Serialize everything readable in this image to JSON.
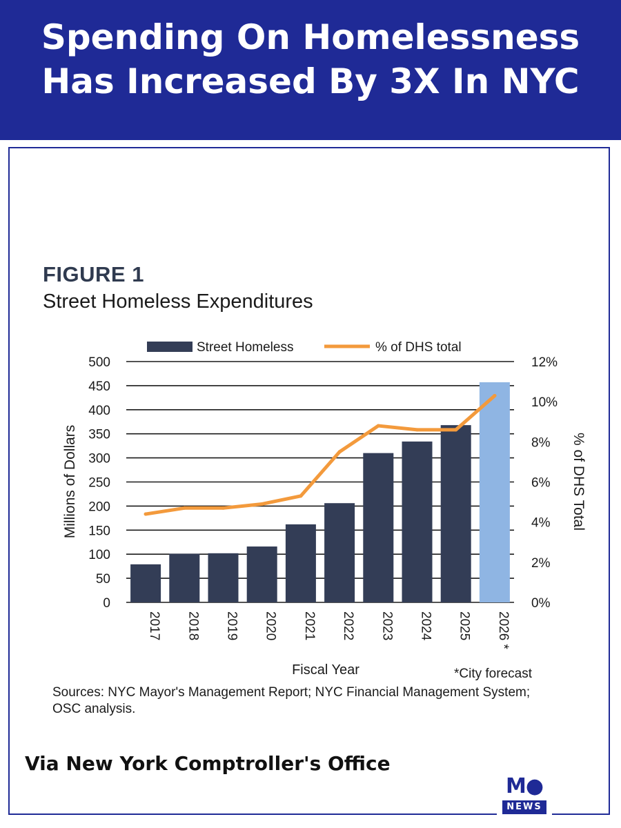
{
  "header": {
    "title": "Spending On Homelessness\nHas Increased By 3X In NYC"
  },
  "figure": {
    "label": "FIGURE 1",
    "title": "Street Homeless Expenditures"
  },
  "chart_data": {
    "type": "bar",
    "categories": [
      "2017",
      "2018",
      "2019",
      "2020",
      "2021",
      "2022",
      "2023",
      "2024",
      "2025",
      "2026 *"
    ],
    "series": [
      {
        "name": "Street Homeless",
        "type": "bar",
        "values": [
          79,
          101,
          102,
          116,
          162,
          206,
          310,
          334,
          368,
          457
        ],
        "colors": [
          "#333d56",
          "#333d56",
          "#333d56",
          "#333d56",
          "#333d56",
          "#333d56",
          "#333d56",
          "#333d56",
          "#333d56",
          "#8fb5e3"
        ]
      },
      {
        "name": "% of DHS total",
        "type": "line",
        "axis": "right",
        "values": [
          4.4,
          4.7,
          4.7,
          4.9,
          5.3,
          7.5,
          8.8,
          8.6,
          8.6,
          10.3
        ],
        "color": "#f39a3c"
      }
    ],
    "xlabel": "Fiscal Year",
    "ylabel": "Millions of Dollars",
    "ylabel_right": "% of DHS Total",
    "ylim": [
      0,
      500
    ],
    "ylim_right": [
      0,
      12
    ],
    "yticks": [
      "0",
      "50",
      "100",
      "150",
      "200",
      "250",
      "300",
      "350",
      "400",
      "450",
      "500"
    ],
    "yticks_right": [
      "0%",
      "2%",
      "4%",
      "6%",
      "8%",
      "10%",
      "12%"
    ],
    "grid": true,
    "legend_position": "top",
    "annotation": "*City forecast"
  },
  "sources": "Sources: NYC Mayor's Management Report; NYC Financial Management System; OSC analysis.",
  "footer": {
    "via": "Via New York Comptroller's Office"
  },
  "logo": {
    "mark": "M●",
    "word": "NEWS"
  }
}
